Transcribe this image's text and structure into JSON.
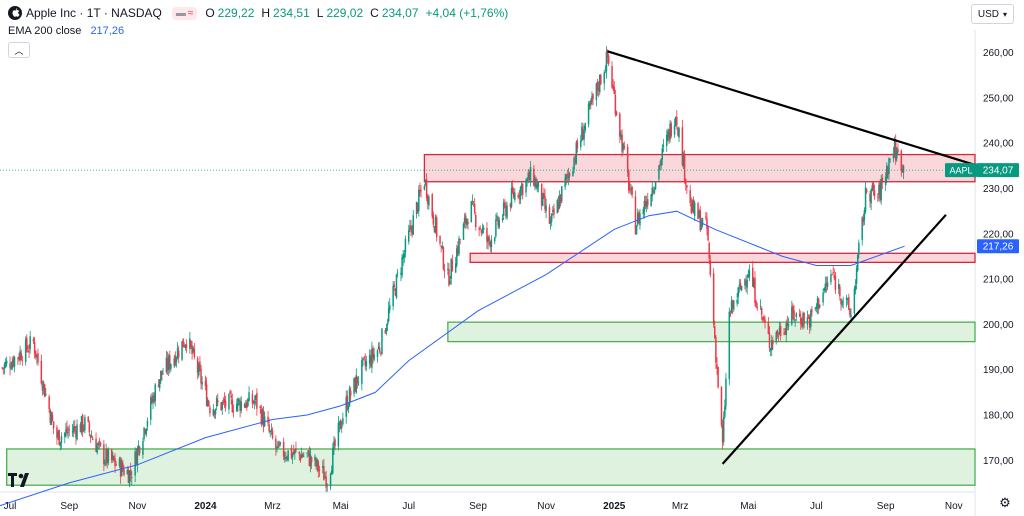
{
  "header": {
    "title": "Apple Inc · 1T · NASDAQ",
    "ohlc": {
      "open_label": "O",
      "open": "229,22",
      "high_label": "H",
      "high": "234,51",
      "low_label": "L",
      "low": "229,02",
      "close_label": "C",
      "close": "234,07",
      "change": "+4,04 (+1,76%)"
    },
    "indicator_pill_icons": [
      "dash-icon",
      "wave-icon"
    ],
    "ema_name": "EMA 200 close",
    "ema_value": "217,26",
    "currency": "USD",
    "collapse_icon": "chevron-up-icon",
    "logo": "tradingview-logo",
    "settings_icon": "gear-icon"
  },
  "chart_data": {
    "type": "candlestick",
    "symbol": "AAPL",
    "timeframe": "1T",
    "exchange": "NASDAQ",
    "last_price": 234.07,
    "last_price_label": "234,07",
    "ema_label": "217,26",
    "ylim": [
      163,
      265
    ],
    "y_ticks": [
      170,
      180,
      190,
      200,
      210,
      220,
      230,
      240,
      250,
      260
    ],
    "y_tick_labels": [
      "170,00",
      "180,00",
      "190,00",
      "200,00",
      "210,00",
      "220,00",
      "230,00",
      "240,00",
      "250,00",
      "260,00"
    ],
    "x_tick_labels": [
      "Jul",
      "Sep",
      "Nov",
      "2024",
      "Mrz",
      "Mai",
      "Jul",
      "Sep",
      "Nov",
      "2025",
      "Mrz",
      "Mai",
      "Jul",
      "Sep",
      "Nov"
    ],
    "x_tick_dates": [
      "2023-07-01",
      "2023-09-01",
      "2023-11-01",
      "2024-01-01",
      "2024-03-01",
      "2024-05-01",
      "2024-07-01",
      "2024-09-01",
      "2024-11-01",
      "2025-01-01",
      "2025-03-01",
      "2025-05-01",
      "2025-07-01",
      "2025-09-01",
      "2025-11-01"
    ],
    "xlim": [
      "2023-07-01",
      "2025-11-20"
    ],
    "close_path": [
      [
        "2023-07-01",
        190
      ],
      [
        "2023-07-31",
        196
      ],
      [
        "2023-08-20",
        175
      ],
      [
        "2023-09-15",
        178
      ],
      [
        "2023-10-01",
        171
      ],
      [
        "2023-10-26",
        167
      ],
      [
        "2023-11-20",
        188
      ],
      [
        "2023-12-15",
        197
      ],
      [
        "2024-01-05",
        182
      ],
      [
        "2024-02-15",
        183
      ],
      [
        "2024-03-05",
        172
      ],
      [
        "2024-04-01",
        171
      ],
      [
        "2024-04-19",
        166
      ],
      [
        "2024-05-05",
        182
      ],
      [
        "2024-05-20",
        190
      ],
      [
        "2024-06-05",
        195
      ],
      [
        "2024-06-25",
        214
      ],
      [
        "2024-07-15",
        232
      ],
      [
        "2024-08-05",
        210
      ],
      [
        "2024-08-25",
        226
      ],
      [
        "2024-09-10",
        218
      ],
      [
        "2024-10-01",
        228
      ],
      [
        "2024-10-20",
        233
      ],
      [
        "2024-11-05",
        222
      ],
      [
        "2024-11-25",
        236
      ],
      [
        "2024-12-26",
        259
      ],
      [
        "2025-01-10",
        237
      ],
      [
        "2025-01-20",
        222
      ],
      [
        "2025-02-05",
        231
      ],
      [
        "2025-02-25",
        247
      ],
      [
        "2025-03-10",
        226
      ],
      [
        "2025-03-25",
        221
      ],
      [
        "2025-04-08",
        173
      ],
      [
        "2025-04-14",
        202
      ],
      [
        "2025-05-01",
        212
      ],
      [
        "2025-05-20",
        196
      ],
      [
        "2025-06-10",
        202
      ],
      [
        "2025-06-25",
        201
      ],
      [
        "2025-07-15",
        211
      ],
      [
        "2025-08-01",
        202
      ],
      [
        "2025-08-15",
        230
      ],
      [
        "2025-08-25",
        228
      ],
      [
        "2025-09-08",
        239
      ],
      [
        "2025-09-15",
        236
      ],
      [
        "2025-09-18",
        234
      ]
    ],
    "ema200": [
      [
        "2023-07-01",
        160
      ],
      [
        "2023-09-01",
        165
      ],
      [
        "2023-11-01",
        169
      ],
      [
        "2024-01-01",
        175
      ],
      [
        "2024-03-01",
        179
      ],
      [
        "2024-04-01",
        180
      ],
      [
        "2024-05-01",
        182
      ],
      [
        "2024-06-01",
        185
      ],
      [
        "2024-07-01",
        192
      ],
      [
        "2024-09-01",
        203
      ],
      [
        "2024-11-01",
        211
      ],
      [
        "2025-01-01",
        221
      ],
      [
        "2025-02-01",
        224
      ],
      [
        "2025-02-26",
        225
      ],
      [
        "2025-04-01",
        221
      ],
      [
        "2025-06-01",
        215
      ],
      [
        "2025-07-01",
        213
      ],
      [
        "2025-08-01",
        213
      ],
      [
        "2025-09-18",
        217.26
      ]
    ],
    "zones": [
      {
        "kind": "resistance",
        "y1": 231.5,
        "y2": 237.5,
        "x1": "2024-07-15",
        "x2": "2025-11-20"
      },
      {
        "kind": "resistance",
        "y1": 213.7,
        "y2": 215.7,
        "x1": "2024-08-25",
        "x2": "2025-11-20"
      },
      {
        "kind": "support",
        "y1": 196.2,
        "y2": 200.5,
        "x1": "2024-08-05",
        "x2": "2025-11-20"
      },
      {
        "kind": "support",
        "y1": 164.5,
        "y2": 172.5,
        "x1": "2023-07-07",
        "x2": "2025-11-20"
      }
    ],
    "trendlines": [
      {
        "from": [
          "2024-12-26",
          260.3
        ],
        "to": [
          "2025-11-20",
          235.2
        ]
      },
      {
        "from": [
          "2025-04-08",
          169.2
        ],
        "to": [
          "2025-10-25",
          224.2
        ]
      }
    ],
    "colors": {
      "up": "#089981",
      "down": "#f23645",
      "ema": "#2962ff",
      "resistance_fill": "#f7c9ce",
      "resistance_border": "#d8263c",
      "support_fill": "#d9efd9",
      "support_border": "#4caf50",
      "trendline": "#000000",
      "last_price": "#089981",
      "symbol_tag": "#089981"
    }
  }
}
